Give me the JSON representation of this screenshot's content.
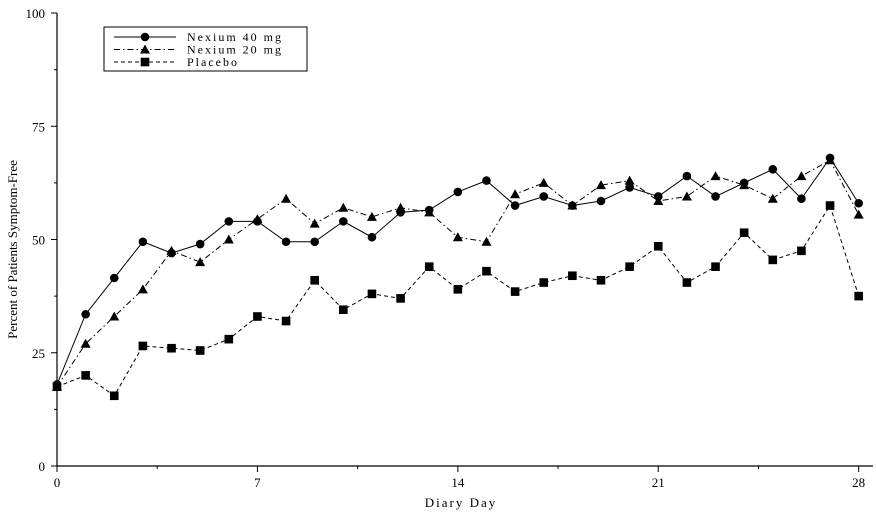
{
  "chart_data": {
    "type": "line",
    "xlabel": "Diary Day",
    "ylabel": "Percent of Patients Symptom-Free",
    "xlim": [
      0,
      28.5
    ],
    "ylim": [
      0,
      100
    ],
    "xticks": [
      0,
      7,
      14,
      21,
      28
    ],
    "yticks": [
      0,
      25,
      50,
      75,
      100
    ],
    "grid": false,
    "legend_position": "top-left",
    "x": [
      0,
      1,
      2,
      3,
      4,
      5,
      6,
      7,
      8,
      9,
      10,
      11,
      12,
      13,
      14,
      15,
      16,
      17,
      18,
      19,
      20,
      21,
      22,
      23,
      24,
      25,
      26,
      27,
      28
    ],
    "series": [
      {
        "name": "Nexium 40 mg",
        "marker": "circle",
        "line": "solid",
        "values": [
          18,
          33.5,
          41.5,
          49.5,
          47,
          49,
          54,
          54,
          49.5,
          49.5,
          54,
          50.5,
          56,
          56.5,
          60.5,
          63,
          57.5,
          59.5,
          57.5,
          58.5,
          61.5,
          59.5,
          64,
          59.5,
          62.5,
          65.5,
          59,
          68,
          58
        ]
      },
      {
        "name": "Nexium 20 mg",
        "marker": "triangle",
        "line": "dashdot",
        "values": [
          17.5,
          27,
          33,
          39,
          47.5,
          45,
          50,
          54.5,
          59,
          53.5,
          57,
          55,
          57,
          56,
          50.5,
          49.5,
          60,
          62.5,
          57.5,
          62,
          63,
          58.5,
          59.5,
          64,
          62,
          59,
          64,
          67.5,
          55.5
        ]
      },
      {
        "name": "Placebo",
        "marker": "square",
        "line": "dashed",
        "values": [
          17.5,
          20,
          15.5,
          26.5,
          26,
          25.5,
          28,
          33,
          32,
          41,
          34.5,
          38,
          37,
          44,
          39,
          43,
          38.5,
          40.5,
          42,
          41,
          44,
          48.5,
          40.5,
          44,
          51.5,
          45.5,
          47.5,
          57.5,
          37.5
        ]
      }
    ]
  }
}
